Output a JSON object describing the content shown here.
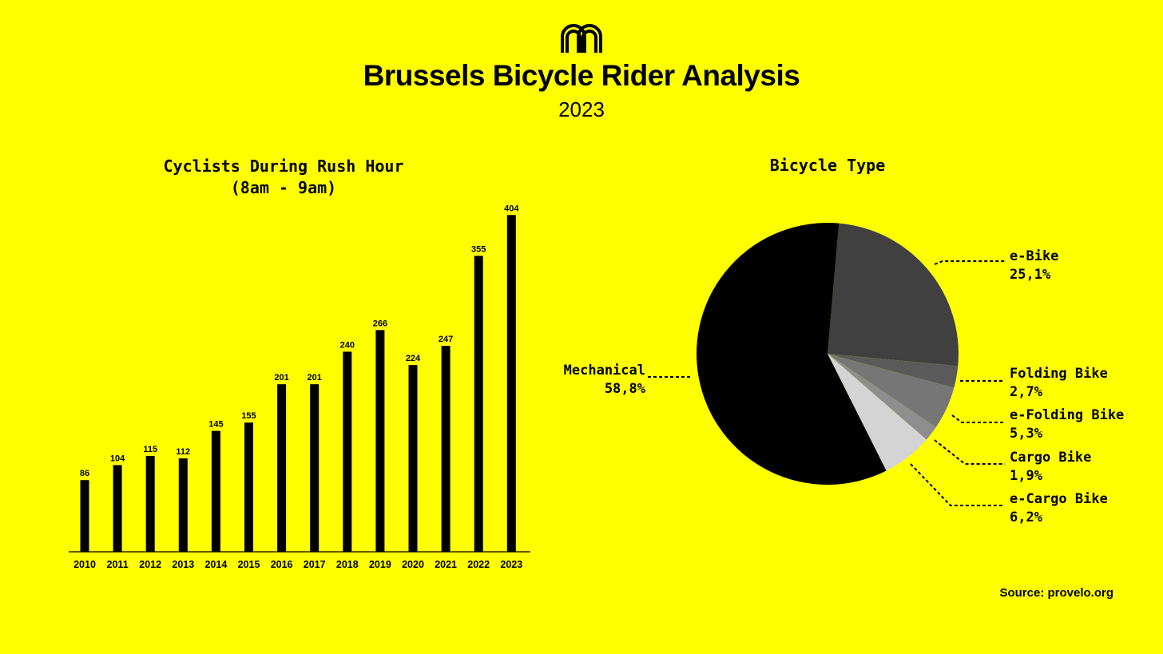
{
  "header": {
    "title": "Brussels Bicycle Rider Analysis",
    "subtitle": "2023"
  },
  "source": "Source: provelo.org",
  "colors": {
    "background": "#FFFF00",
    "bars": "#000000"
  },
  "chart_data": [
    {
      "type": "bar",
      "title_line1": "Cyclists During Rush Hour",
      "title_line2": "(8am - 9am)",
      "categories": [
        "2010",
        "2011",
        "2012",
        "2013",
        "2014",
        "2015",
        "2016",
        "2017",
        "2018",
        "2019",
        "2020",
        "2021",
        "2022",
        "2023"
      ],
      "values": [
        86,
        104,
        115,
        112,
        145,
        155,
        201,
        201,
        240,
        266,
        224,
        247,
        355,
        404
      ],
      "xlabel": "",
      "ylabel": "",
      "ylim": [
        0,
        410
      ],
      "grid": false,
      "data_labels": true
    },
    {
      "type": "pie",
      "title": "Bicycle Type",
      "slices": [
        {
          "label": "e-Bike",
          "value_text": "25,1%",
          "value": 25.1,
          "color": "#404040"
        },
        {
          "label": "Folding Bike",
          "value_text": "2,7%",
          "value": 2.7,
          "color": "#5a5a5a"
        },
        {
          "label": "e-Folding Bike",
          "value_text": "5,3%",
          "value": 5.3,
          "color": "#767676"
        },
        {
          "label": "Cargo Bike",
          "value_text": "1,9%",
          "value": 1.9,
          "color": "#8e8e8e"
        },
        {
          "label": "e-Cargo Bike",
          "value_text": "6,2%",
          "value": 6.2,
          "color": "#d4d4d4"
        },
        {
          "label": "Mechanical",
          "value_text": "58,8%",
          "value": 58.8,
          "color": "#000000"
        }
      ]
    }
  ]
}
